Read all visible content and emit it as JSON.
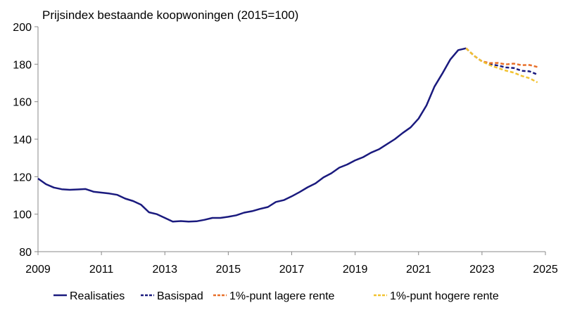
{
  "chart_data": {
    "type": "line",
    "title": "Prijsindex bestaande koopwoningen (2015=100)",
    "xlabel": "",
    "ylabel": "",
    "xlim": [
      2009,
      2025
    ],
    "ylim": [
      80,
      200
    ],
    "x_ticks": [
      2009,
      2011,
      2013,
      2015,
      2017,
      2019,
      2021,
      2023,
      2025
    ],
    "y_ticks": [
      80,
      100,
      120,
      140,
      160,
      180,
      200
    ],
    "grid": false,
    "legend_position": "bottom",
    "series": [
      {
        "name": "Realisaties",
        "color": "#1a1a7e",
        "style": "solid",
        "x": [
          2009.0,
          2009.25,
          2009.5,
          2009.75,
          2010.0,
          2010.25,
          2010.5,
          2010.75,
          2011.0,
          2011.25,
          2011.5,
          2011.75,
          2012.0,
          2012.25,
          2012.5,
          2012.75,
          2013.0,
          2013.25,
          2013.5,
          2013.75,
          2014.0,
          2014.25,
          2014.5,
          2014.75,
          2015.0,
          2015.25,
          2015.5,
          2015.75,
          2016.0,
          2016.25,
          2016.5,
          2016.75,
          2017.0,
          2017.25,
          2017.5,
          2017.75,
          2018.0,
          2018.25,
          2018.5,
          2018.75,
          2019.0,
          2019.25,
          2019.5,
          2019.75,
          2020.0,
          2020.25,
          2020.5,
          2020.75,
          2021.0,
          2021.25,
          2021.5,
          2021.75,
          2022.0,
          2022.25,
          2022.5
        ],
        "values": [
          119.0,
          116.0,
          114.2,
          113.3,
          113.0,
          113.2,
          113.4,
          112.0,
          111.5,
          111.0,
          110.3,
          108.3,
          107.0,
          105.0,
          101.0,
          100.0,
          98.0,
          96.0,
          96.3,
          96.0,
          96.2,
          97.0,
          98.0,
          98.0,
          98.6,
          99.4,
          100.8,
          101.6,
          102.8,
          103.8,
          106.5,
          107.5,
          109.5,
          111.8,
          114.3,
          116.4,
          119.6,
          121.8,
          124.8,
          126.5,
          128.7,
          130.4,
          132.8,
          134.6,
          137.3,
          140.0,
          143.3,
          146.3,
          151.0,
          158.0,
          168.0,
          175.0,
          182.5,
          187.5,
          188.5
        ]
      },
      {
        "name": "Basispad",
        "color": "#1a1a7e",
        "style": "dashed",
        "x": [
          2022.5,
          2022.75,
          2023.0,
          2023.25,
          2023.5,
          2023.75,
          2024.0,
          2024.25,
          2024.5,
          2024.75
        ],
        "values": [
          188.5,
          184.5,
          181.5,
          180.0,
          179.3,
          178.3,
          178.0,
          176.5,
          176.2,
          174.5
        ]
      },
      {
        "name": "1%-punt lagere rente",
        "color": "#e8702a",
        "style": "dashed",
        "x": [
          2022.5,
          2022.75,
          2023.0,
          2023.25,
          2023.5,
          2023.75,
          2024.0,
          2024.25,
          2024.5,
          2024.75
        ],
        "values": [
          188.5,
          184.5,
          181.5,
          180.6,
          180.7,
          179.9,
          180.3,
          179.5,
          179.6,
          178.5
        ]
      },
      {
        "name": "1%-punt hogere rente",
        "color": "#f2c230",
        "style": "dashed",
        "x": [
          2022.5,
          2022.75,
          2023.0,
          2023.25,
          2023.5,
          2023.75,
          2024.0,
          2024.25,
          2024.5,
          2024.75
        ],
        "values": [
          188.5,
          184.5,
          181.5,
          179.5,
          178.0,
          176.6,
          175.5,
          173.8,
          172.5,
          170.3
        ]
      }
    ]
  }
}
